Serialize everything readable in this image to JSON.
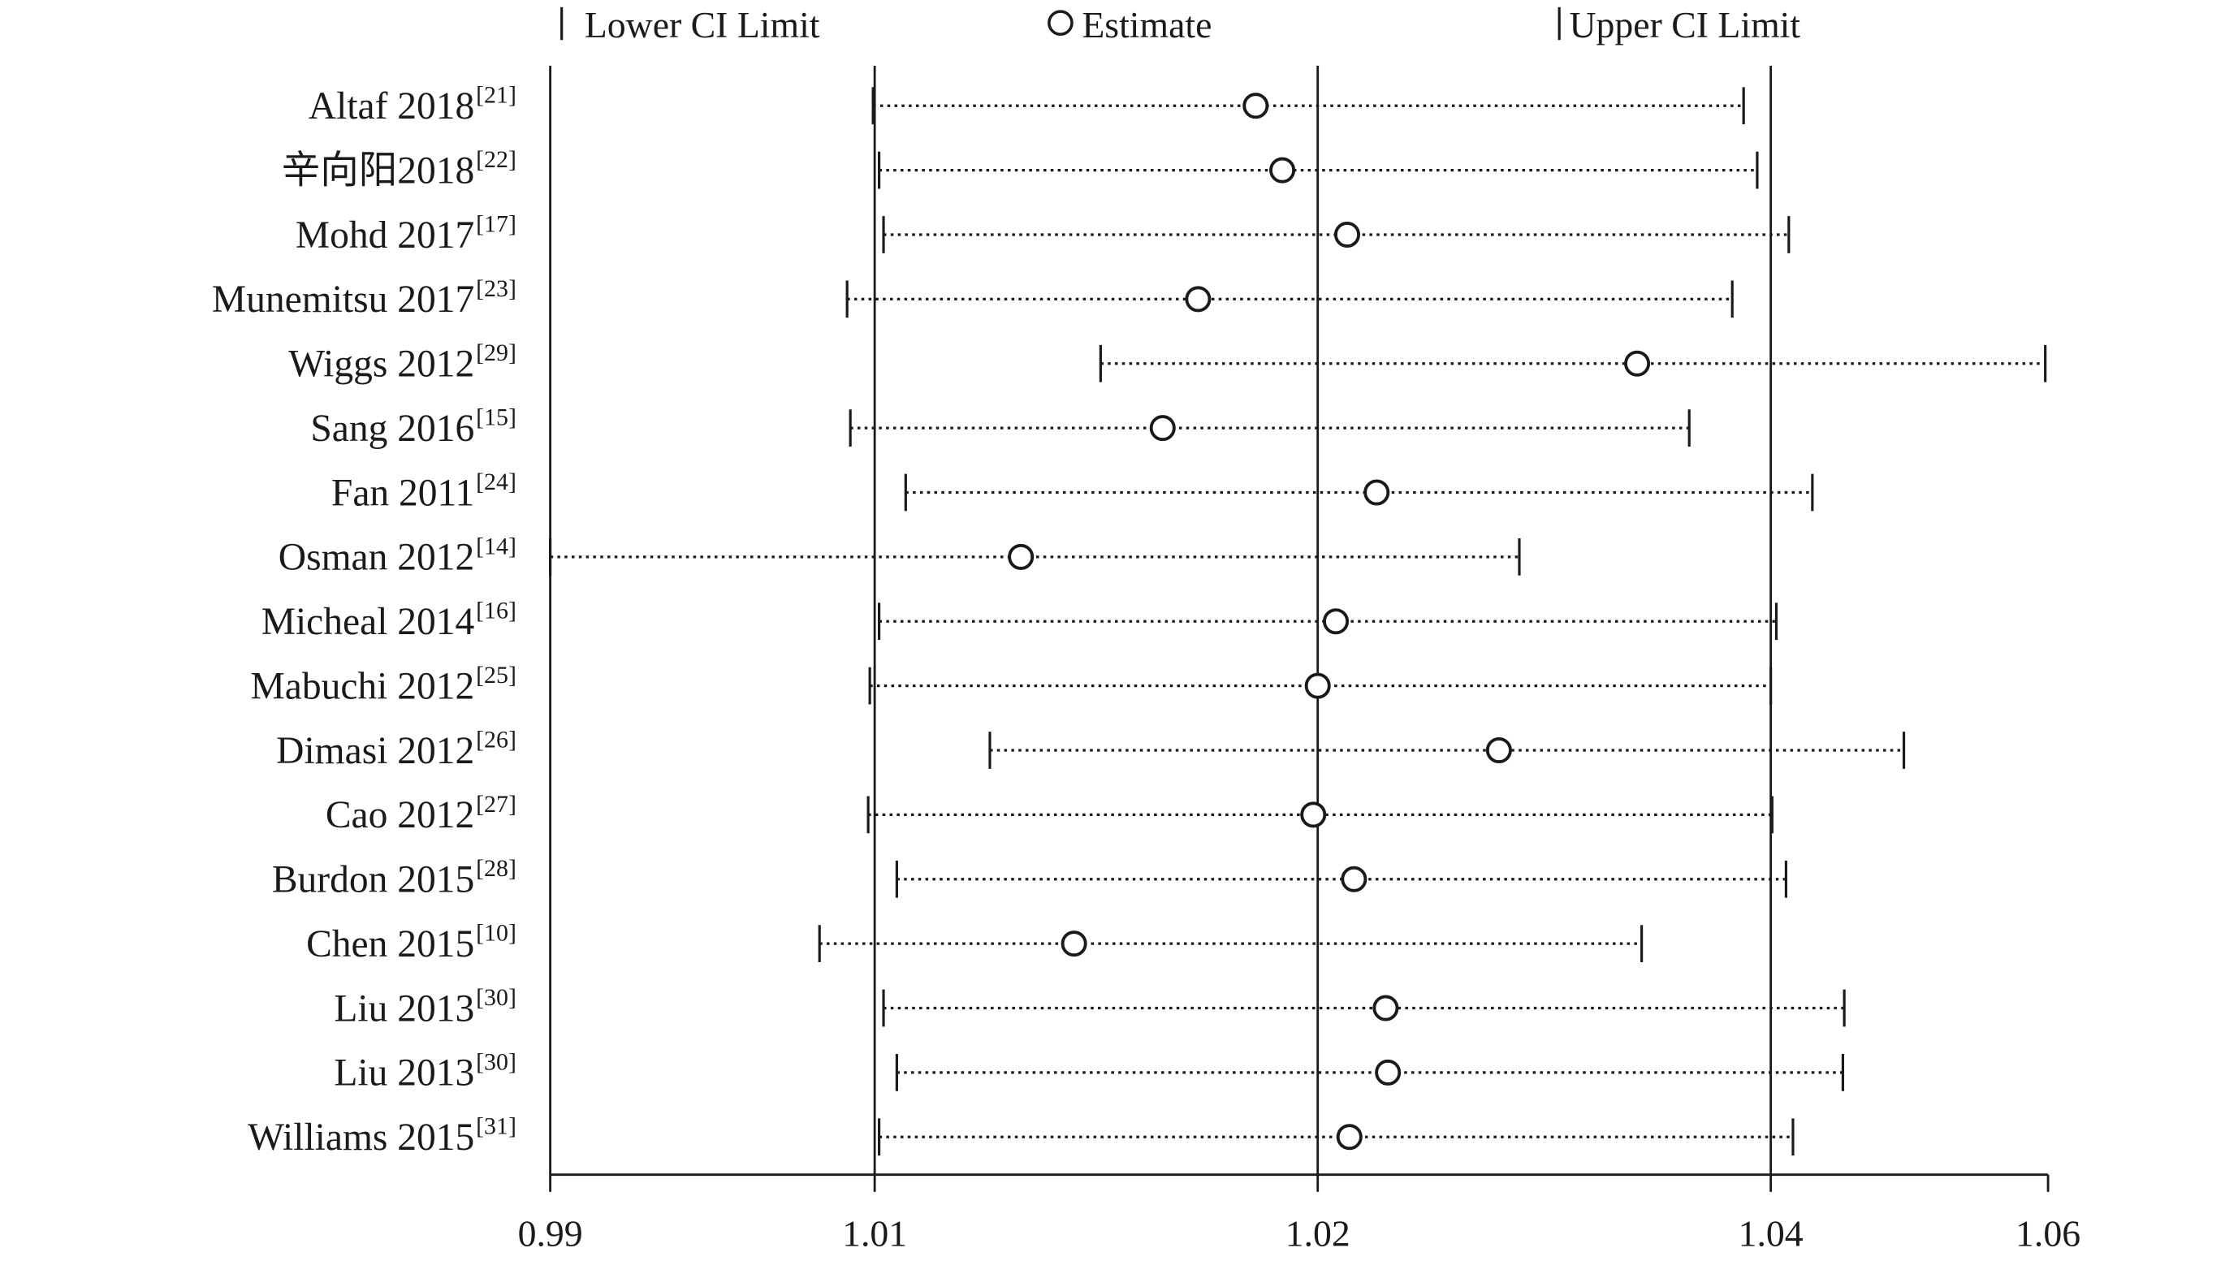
{
  "chart_data": {
    "type": "forest",
    "legend": {
      "lower": "Lower CI Limit",
      "estimate": "Estimate",
      "upper": "Upper CI Limit",
      "placement": "top"
    },
    "x_ticks": [
      {
        "value": 0.99,
        "label": "0.99"
      },
      {
        "value": 1.01,
        "label": "1.01"
      },
      {
        "value": 1.02,
        "label": "1.02"
      },
      {
        "value": 1.04,
        "label": "1.04"
      },
      {
        "value": 1.06,
        "label": "1.06"
      }
    ],
    "reference_lines": [
      1.01,
      1.02,
      1.04
    ],
    "studies": [
      {
        "label": "Altaf 2018",
        "ref": "[21]",
        "lower": 1.0099,
        "estimate": 1.0186,
        "upper": 1.0388
      },
      {
        "label": "辛向阳2018",
        "ref": "[22]",
        "lower": 1.0101,
        "estimate": 1.0192,
        "upper": 1.0394
      },
      {
        "label": "Mohd 2017",
        "ref": "[17]",
        "lower": 1.0102,
        "estimate": 1.0213,
        "upper": 1.0413
      },
      {
        "label": "Munemitsu 2017",
        "ref": "[23]",
        "lower": 1.0083,
        "estimate": 1.0173,
        "upper": 1.0383
      },
      {
        "label": "Wiggs 2012",
        "ref": "[29]",
        "lower": 1.0151,
        "estimate": 1.0341,
        "upper": 1.0598
      },
      {
        "label": "Sang 2016",
        "ref": "[15]",
        "lower": 1.0085,
        "estimate": 1.0165,
        "upper": 1.0364
      },
      {
        "label": "Fan 2011",
        "ref": "[24]",
        "lower": 1.0107,
        "estimate": 1.0226,
        "upper": 1.043
      },
      {
        "label": "Osman 2012",
        "ref": "[14]",
        "lower": 0.99,
        "estimate": 1.0133,
        "upper": 1.0289
      },
      {
        "label": "Micheal 2014",
        "ref": "[16]",
        "lower": 1.0101,
        "estimate": 1.0208,
        "upper": 1.0404
      },
      {
        "label": "Mabuchi 2012",
        "ref": "[25]",
        "lower": 1.0097,
        "estimate": 1.02,
        "upper": 1.04
      },
      {
        "label": "Dimasi 2012",
        "ref": "[26]",
        "lower": 1.0126,
        "estimate": 1.028,
        "upper": 1.0496
      },
      {
        "label": "Cao 2012",
        "ref": "[27]",
        "lower": 1.0096,
        "estimate": 1.0199,
        "upper": 1.0401
      },
      {
        "label": "Burdon 2015",
        "ref": "[28]",
        "lower": 1.0105,
        "estimate": 1.0216,
        "upper": 1.0411
      },
      {
        "label": "Chen 2015",
        "ref": "[10]",
        "lower": 1.0066,
        "estimate": 1.0145,
        "upper": 1.0343
      },
      {
        "label": "Liu 2013",
        "ref": "[30]",
        "lower": 1.0102,
        "estimate": 1.023,
        "upper": 1.0453
      },
      {
        "label": "Liu 2013",
        "ref": "[30]",
        "lower": 1.0105,
        "estimate": 1.0231,
        "upper": 1.0452
      },
      {
        "label": "Williams 2015",
        "ref": "[31]",
        "lower": 1.0101,
        "estimate": 1.0214,
        "upper": 1.0416
      }
    ]
  }
}
